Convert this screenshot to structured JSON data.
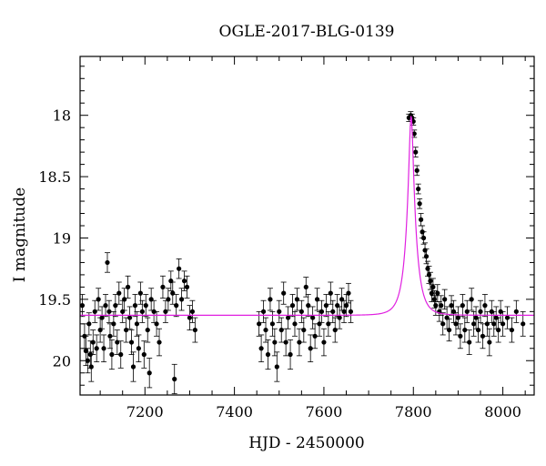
{
  "chart_data": {
    "type": "scatter",
    "title": "OGLE-2017-BLG-0139",
    "xlabel": "HJD - 2450000",
    "ylabel": "I magnitude",
    "xlim": [
      7055,
      8070
    ],
    "ylim": [
      20.28,
      17.52
    ],
    "y_inverted": true,
    "grid": false,
    "x_ticks": [
      7200,
      7400,
      7600,
      7800,
      8000
    ],
    "y_ticks": [
      18,
      18.5,
      19,
      19.5,
      20
    ],
    "x_tick_labels": [
      "7200",
      "7400",
      "7600",
      "7800",
      "8000"
    ],
    "y_tick_labels": [
      "18",
      "18.5",
      "19",
      "19.5",
      "20"
    ],
    "colors": {
      "points": "#000000",
      "model": "#e020e0",
      "axes": "#000000"
    },
    "model": {
      "baseline_mag": 19.63,
      "peak_mag": 18.0,
      "t0": 7795,
      "tE": 22,
      "u0": 0.2
    },
    "series": [
      {
        "kind": "points",
        "x": [
          7060,
          7065,
          7068,
          7072,
          7075,
          7078,
          7080,
          7084,
          7088,
          7092,
          7096,
          7100,
          7104,
          7108,
          7112,
          7116,
          7120,
          7122,
          7126,
          7130,
          7134,
          7138,
          7142,
          7146,
          7150,
          7154,
          7158,
          7162,
          7166,
          7170,
          7174,
          7178,
          7182,
          7186,
          7190,
          7194,
          7198,
          7202,
          7206,
          7210,
          7214,
          7220,
          7226,
          7232,
          7240,
          7246,
          7252,
          7258,
          7262,
          7266,
          7270,
          7276,
          7282,
          7288,
          7294,
          7300,
          7306,
          7312,
          7455,
          7460,
          7465,
          7470,
          7475,
          7480,
          7485,
          7490,
          7495,
          7500,
          7505,
          7510,
          7515,
          7520,
          7525,
          7530,
          7535,
          7540,
          7545,
          7550,
          7555,
          7560,
          7565,
          7570,
          7575,
          7580,
          7585,
          7590,
          7595,
          7600,
          7605,
          7610,
          7615,
          7620,
          7625,
          7630,
          7635,
          7640,
          7645,
          7650,
          7655,
          7660,
          7790,
          7794,
          7797,
          7800,
          7802,
          7805,
          7808,
          7811,
          7814,
          7817,
          7820,
          7823,
          7826,
          7829,
          7832,
          7835,
          7838,
          7841,
          7844,
          7847,
          7850,
          7854,
          7858,
          7862,
          7866,
          7870,
          7875,
          7880,
          7885,
          7890,
          7895,
          7900,
          7905,
          7910,
          7915,
          7920,
          7925,
          7930,
          7935,
          7940,
          7945,
          7950,
          7955,
          7960,
          7965,
          7970,
          7975,
          7980,
          7985,
          7990,
          7995,
          8000,
          8010,
          8020,
          8030,
          8045
        ],
        "y": [
          19.55,
          19.8,
          19.92,
          20.0,
          19.7,
          19.95,
          20.05,
          19.85,
          19.6,
          19.9,
          19.5,
          19.75,
          19.65,
          19.9,
          19.55,
          19.2,
          19.6,
          19.8,
          19.95,
          19.7,
          19.55,
          19.85,
          19.45,
          19.95,
          19.6,
          19.5,
          19.75,
          19.4,
          19.65,
          19.85,
          20.05,
          19.55,
          19.7,
          19.9,
          19.45,
          19.6,
          19.95,
          19.55,
          19.75,
          20.1,
          19.5,
          19.6,
          19.7,
          19.85,
          19.4,
          19.6,
          19.5,
          19.35,
          19.45,
          20.15,
          19.55,
          19.25,
          19.5,
          19.35,
          19.4,
          19.65,
          19.6,
          19.75,
          19.7,
          19.9,
          19.6,
          19.75,
          19.95,
          19.5,
          19.7,
          19.85,
          20.05,
          19.6,
          19.75,
          19.45,
          19.85,
          19.65,
          19.95,
          19.55,
          19.7,
          19.5,
          19.85,
          19.6,
          19.75,
          19.4,
          19.55,
          19.9,
          19.65,
          19.8,
          19.5,
          19.7,
          19.6,
          19.85,
          19.55,
          19.7,
          19.45,
          19.6,
          19.75,
          19.55,
          19.65,
          19.5,
          19.6,
          19.55,
          19.45,
          19.6,
          18.02,
          18.0,
          18.02,
          18.05,
          18.15,
          18.3,
          18.45,
          18.6,
          18.72,
          18.85,
          18.95,
          19.0,
          19.1,
          19.15,
          19.25,
          19.3,
          19.35,
          19.45,
          19.4,
          19.5,
          19.55,
          19.45,
          19.6,
          19.55,
          19.7,
          19.5,
          19.65,
          19.75,
          19.55,
          19.6,
          19.7,
          19.65,
          19.8,
          19.55,
          19.75,
          19.6,
          19.85,
          19.5,
          19.7,
          19.65,
          19.75,
          19.6,
          19.8,
          19.55,
          19.7,
          19.85,
          19.6,
          19.7,
          19.65,
          19.75,
          19.6,
          19.7,
          19.65,
          19.75,
          19.6,
          19.7
        ],
        "err": [
          0.09,
          0.1,
          0.12,
          0.1,
          0.09,
          0.11,
          0.12,
          0.1,
          0.09,
          0.11,
          0.09,
          0.1,
          0.09,
          0.11,
          0.09,
          0.08,
          0.09,
          0.1,
          0.12,
          0.1,
          0.09,
          0.1,
          0.09,
          0.11,
          0.09,
          0.09,
          0.1,
          0.09,
          0.09,
          0.1,
          0.12,
          0.09,
          0.1,
          0.11,
          0.09,
          0.09,
          0.11,
          0.09,
          0.1,
          0.12,
          0.09,
          0.09,
          0.1,
          0.11,
          0.09,
          0.09,
          0.09,
          0.08,
          0.09,
          0.12,
          0.09,
          0.08,
          0.09,
          0.08,
          0.09,
          0.1,
          0.09,
          0.1,
          0.1,
          0.11,
          0.09,
          0.1,
          0.12,
          0.09,
          0.1,
          0.11,
          0.12,
          0.09,
          0.1,
          0.09,
          0.11,
          0.09,
          0.12,
          0.09,
          0.1,
          0.09,
          0.11,
          0.09,
          0.1,
          0.08,
          0.09,
          0.11,
          0.09,
          0.1,
          0.09,
          0.1,
          0.09,
          0.11,
          0.09,
          0.1,
          0.09,
          0.09,
          0.1,
          0.09,
          0.09,
          0.09,
          0.09,
          0.09,
          0.08,
          0.09,
          0.03,
          0.03,
          0.03,
          0.03,
          0.03,
          0.04,
          0.04,
          0.04,
          0.04,
          0.05,
          0.05,
          0.05,
          0.06,
          0.06,
          0.06,
          0.07,
          0.07,
          0.07,
          0.07,
          0.07,
          0.08,
          0.07,
          0.08,
          0.08,
          0.09,
          0.08,
          0.09,
          0.09,
          0.08,
          0.09,
          0.09,
          0.09,
          0.1,
          0.09,
          0.1,
          0.09,
          0.1,
          0.09,
          0.1,
          0.09,
          0.1,
          0.09,
          0.1,
          0.09,
          0.1,
          0.11,
          0.09,
          0.1,
          0.09,
          0.1,
          0.09,
          0.1,
          0.09,
          0.1,
          0.09,
          0.1
        ]
      }
    ]
  }
}
